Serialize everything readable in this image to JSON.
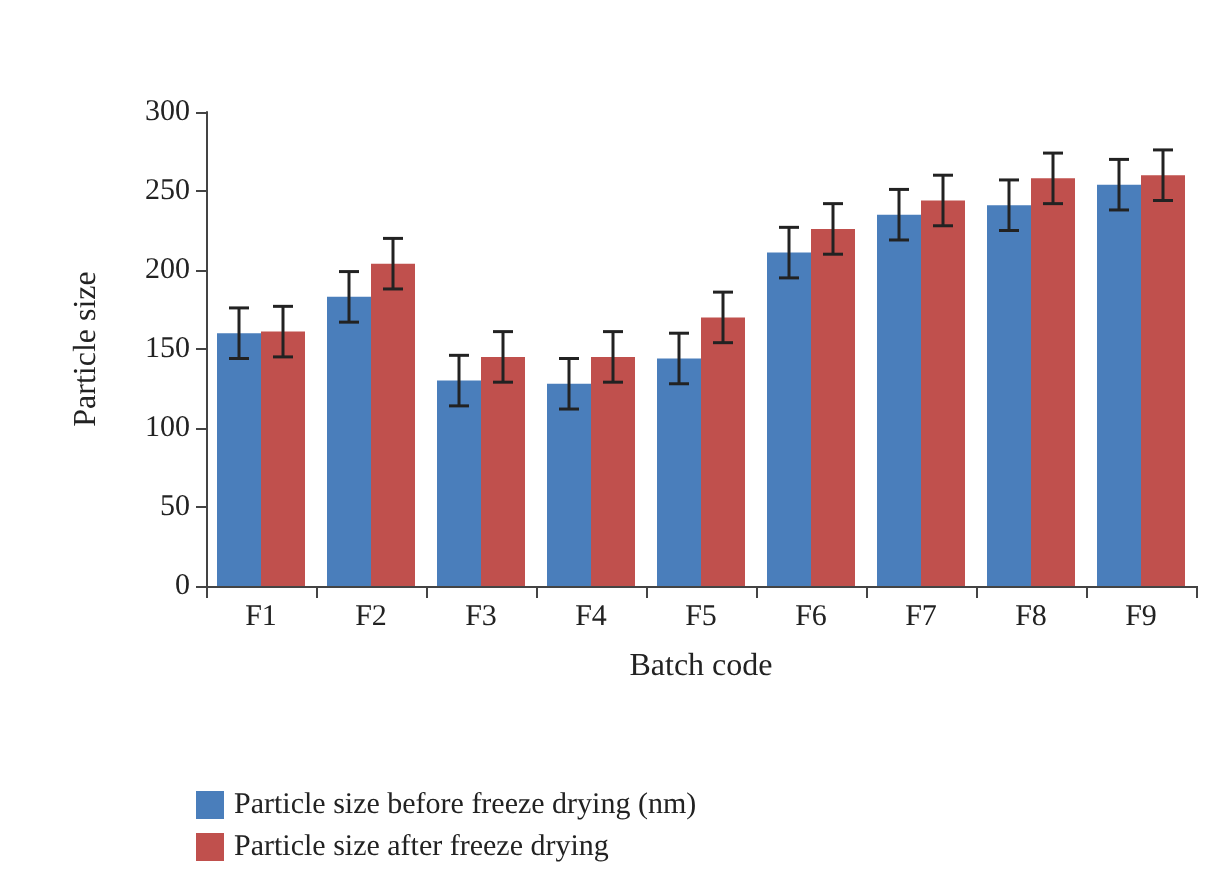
{
  "chart_data": {
    "type": "bar",
    "xlabel": "Batch code",
    "ylabel": "Particle size",
    "categories": [
      "F1",
      "F2",
      "F3",
      "F4",
      "F5",
      "F6",
      "F7",
      "F8",
      "F9"
    ],
    "series": [
      {
        "name": "Particle size before freeze drying (nm)",
        "color": "#4a7ebb",
        "values": [
          160,
          183,
          130,
          128,
          144,
          211,
          235,
          241,
          254
        ],
        "errors": [
          16,
          16,
          16,
          16,
          16,
          16,
          16,
          16,
          16
        ]
      },
      {
        "name": "Particle size after freeze drying",
        "color": "#c0504d",
        "values": [
          161,
          204,
          145,
          145,
          170,
          226,
          244,
          258,
          260
        ],
        "errors": [
          16,
          16,
          16,
          16,
          16,
          16,
          16,
          16,
          16
        ]
      }
    ],
    "ylim": [
      0,
      300
    ],
    "yticks": [
      0,
      50,
      100,
      150,
      200,
      250,
      300
    ],
    "grid": false,
    "legend": "bottom left"
  }
}
